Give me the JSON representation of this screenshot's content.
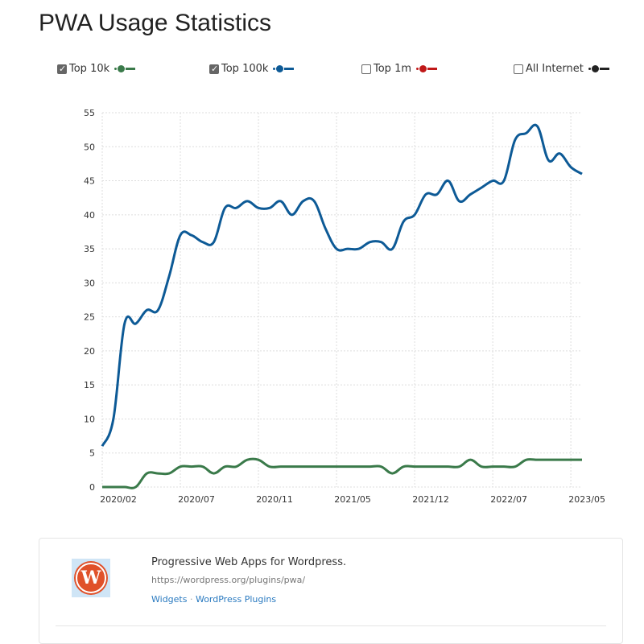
{
  "title": "PWA Usage Statistics",
  "legend": [
    {
      "label": "Top 10k",
      "checked": true,
      "color": "#3a7a4a"
    },
    {
      "label": "Top 100k",
      "checked": true,
      "color": "#0d5a96"
    },
    {
      "label": "Top 1m",
      "checked": false,
      "color": "#c01818"
    },
    {
      "label": "All Internet",
      "checked": false,
      "color": "#222222"
    }
  ],
  "chart_data": {
    "type": "line",
    "title": "PWA Usage Statistics",
    "ylim": [
      0,
      55
    ],
    "yticks": [
      0,
      5,
      10,
      15,
      20,
      25,
      30,
      35,
      40,
      45,
      50,
      55
    ],
    "xtick_labels": [
      {
        "index": 0,
        "label": "2020/02"
      },
      {
        "index": 7,
        "label": "2020/07"
      },
      {
        "index": 14,
        "label": "2020/11"
      },
      {
        "index": 21,
        "label": "2021/05"
      },
      {
        "index": 28,
        "label": "2021/12"
      },
      {
        "index": 35,
        "label": "2022/07"
      },
      {
        "index": 42,
        "label": "2023/05"
      }
    ],
    "grid": true,
    "series": [
      {
        "name": "Top 100k",
        "color": "#0d5a96",
        "values": [
          6,
          10,
          24,
          24,
          26,
          26,
          31,
          37,
          37,
          36,
          36,
          41,
          41,
          42,
          41,
          41,
          42,
          40,
          42,
          42,
          38,
          35,
          35,
          35,
          36,
          36,
          35,
          39,
          40,
          43,
          43,
          45,
          42,
          43,
          44,
          45,
          45,
          51,
          52,
          53,
          48,
          49,
          47,
          46
        ]
      },
      {
        "name": "Top 10k",
        "color": "#3a7a4a",
        "values": [
          0,
          0,
          0,
          0,
          2,
          2,
          2,
          3,
          3,
          3,
          2,
          3,
          3,
          4,
          4,
          3,
          3,
          3,
          3,
          3,
          3,
          3,
          3,
          3,
          3,
          3,
          2,
          3,
          3,
          3,
          3,
          3,
          3,
          4,
          3,
          3,
          3,
          3,
          4,
          4,
          4,
          4,
          4,
          4
        ]
      }
    ]
  },
  "card": {
    "title": "Progressive Web Apps for Wordpress.",
    "url": "https://wordpress.org/plugins/pwa/",
    "tags": [
      "Widgets",
      "WordPress Plugins"
    ],
    "separator": "·",
    "logo_letter": "W"
  }
}
